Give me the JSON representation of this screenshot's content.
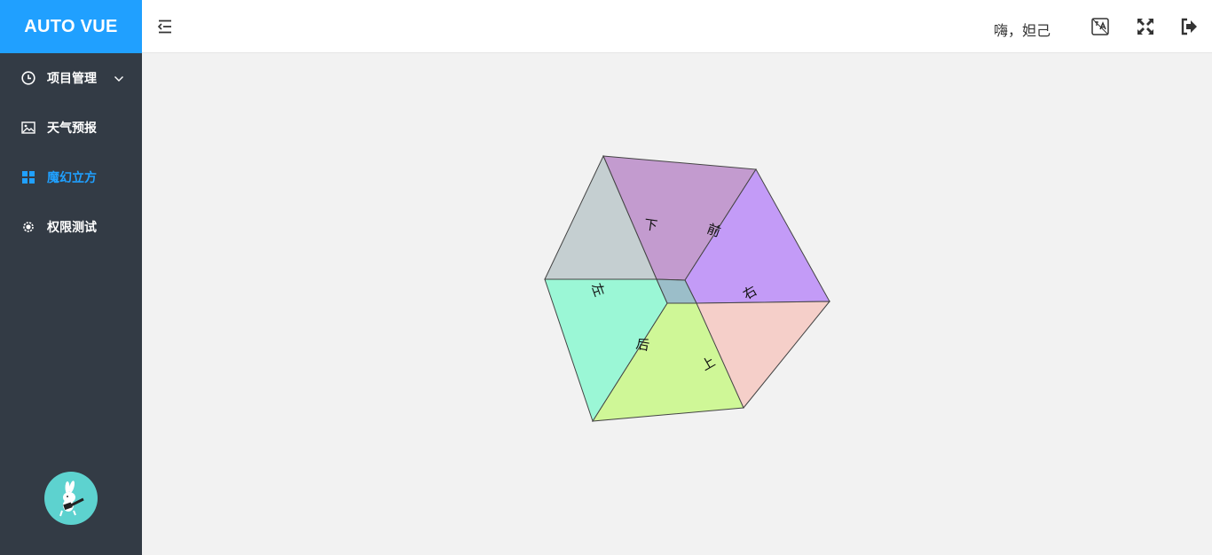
{
  "app": {
    "title": "AUTO VUE"
  },
  "sidebar": {
    "items": [
      {
        "label": "项目管理",
        "icon": "clock-icon",
        "has_submenu": true
      },
      {
        "label": "天气预报",
        "icon": "image-icon"
      },
      {
        "label": "魔幻立方",
        "icon": "grid-icon",
        "active": true
      },
      {
        "label": "权限测试",
        "icon": "gear-icon"
      }
    ],
    "active_color": "#20a0ff"
  },
  "header": {
    "greeting": "嗨，妲己",
    "icons": [
      "collapse-menu-icon",
      "translate-icon",
      "fullscreen-icon",
      "logout-icon"
    ]
  },
  "cube": {
    "faces": [
      {
        "label": "下",
        "color": "#c39bcf"
      },
      {
        "label": "前",
        "color": "#c39bf7"
      },
      {
        "label": "右",
        "color": "#f5cfc9"
      },
      {
        "label": "上",
        "color": "#cff797"
      },
      {
        "label": "后",
        "color": "#9bf7d6"
      },
      {
        "label": "左",
        "color": "#c5cfd1"
      }
    ]
  },
  "colors": {
    "brand": "#20a0ff",
    "sidebar_bg": "#333b45",
    "avatar_bg": "#5dd2cf"
  }
}
